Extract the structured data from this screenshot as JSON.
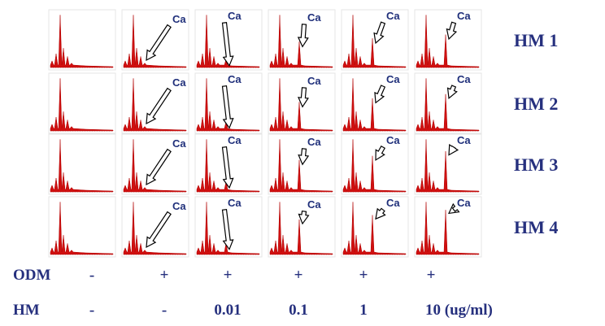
{
  "rows": [
    {
      "label": "HM 1",
      "annotations": [
        "Ca",
        "Ca",
        "Ca",
        "Ca",
        "Ca"
      ]
    },
    {
      "label": "HM 2",
      "annotations": [
        "Ca",
        "Ca",
        "Ca",
        "Ca",
        "Ca"
      ]
    },
    {
      "label": "HM 3",
      "annotations": [
        "Ca",
        "Ca",
        "Ca",
        "Ca",
        "Ca"
      ]
    },
    {
      "label": "HM 4",
      "annotations": [
        "Ca",
        "Ca",
        "Ca",
        "Ca",
        "Ca"
      ]
    }
  ],
  "conditions": [
    {
      "label": "ODM",
      "values": [
        "-",
        "+",
        "+",
        "+",
        "+",
        "+"
      ]
    },
    {
      "label": "HM",
      "values": [
        "-",
        "-",
        "0.01",
        "0.1",
        "1",
        "10 (ug/ml)"
      ]
    }
  ]
}
